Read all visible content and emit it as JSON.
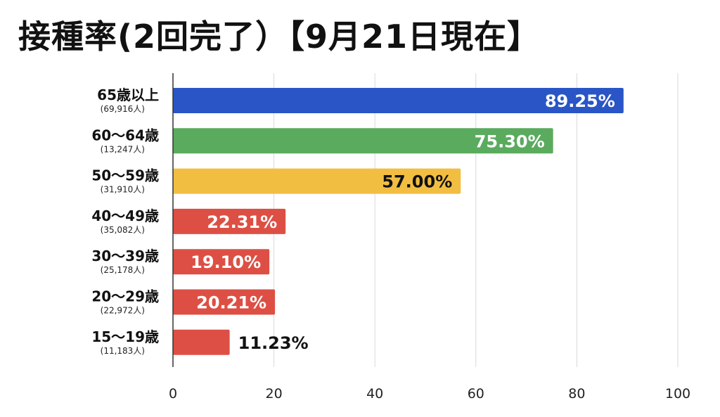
{
  "title": "接種率(2回完了）【9月21日現在】",
  "chart_data": {
    "type": "bar",
    "orientation": "horizontal",
    "title": "接種率(2回完了）【9月21日現在】",
    "categories": [
      "65歳以上",
      "60〜64歳",
      "50〜59歳",
      "40〜49歳",
      "30〜39歳",
      "20〜29歳",
      "15〜19歳"
    ],
    "subcategories": [
      "(69,916人)",
      "(13,247人)",
      "(31,910人)",
      "(35,082人)",
      "(25,178人)",
      "(22,972人)",
      "(11,183人)"
    ],
    "values": [
      89.25,
      75.3,
      57.0,
      22.31,
      19.1,
      20.21,
      11.23
    ],
    "value_labels": [
      "89.25%",
      "75.30%",
      "57.00%",
      "22.31%",
      "19.10%",
      "20.21%",
      "11.23%"
    ],
    "bar_colors": [
      "#2a55c6",
      "#5aab5e",
      "#f2be42",
      "#dd4f44",
      "#dd4f44",
      "#dd4f44",
      "#dd4f44"
    ],
    "label_colors": [
      "#ffffff",
      "#ffffff",
      "#111111",
      "#ffffff",
      "#ffffff",
      "#ffffff",
      "#111111"
    ],
    "label_inside": [
      true,
      true,
      true,
      true,
      true,
      true,
      false
    ],
    "xlim": [
      0,
      100
    ],
    "xticks": [
      0,
      20,
      40,
      60,
      80,
      100
    ],
    "grid": true,
    "legend": "none"
  }
}
